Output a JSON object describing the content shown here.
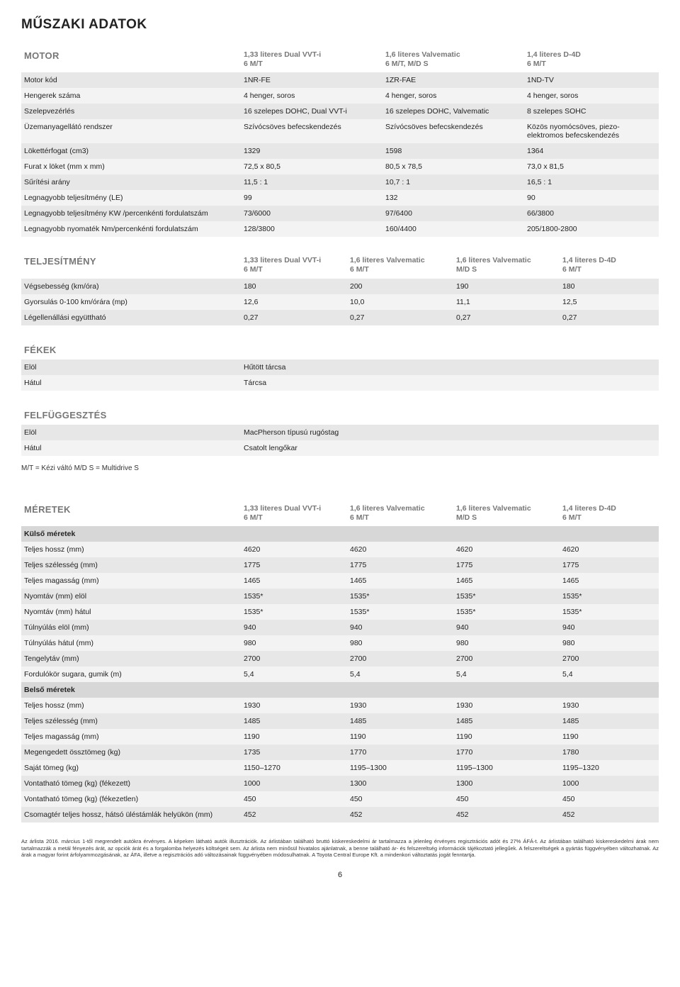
{
  "title": "MŰSZAKI ADATOK",
  "sections": {
    "motor": {
      "heading": "MOTOR",
      "cols": [
        "1,33 literes Dual VVT-i\n6 M/T",
        "1,6 literes Valvematic\n6 M/T, M/D S",
        "1,4 literes D-4D\n6 M/T"
      ],
      "rows": [
        [
          "Motor kód",
          "1NR-FE",
          "1ZR-FAE",
          "1ND-TV"
        ],
        [
          "Hengerek száma",
          "4 henger, soros",
          "4 henger, soros",
          "4 henger, soros"
        ],
        [
          "Szelepvezérlés",
          "16 szelepes DOHC, Dual VVT-i",
          "16 szelepes DOHC, Valvematic",
          "8 szelepes SOHC"
        ],
        [
          "Üzemanyagellátó rendszer",
          "Szívócsöves befecskendezés",
          "Szívócsöves befecskendezés",
          "Közös nyomócsöves, piezo-elektromos befecskendezés"
        ],
        [
          "Lökettérfogat (cm3)",
          "1329",
          "1598",
          "1364"
        ],
        [
          "Furat x löket (mm x mm)",
          "72,5 x 80,5",
          "80,5 x 78,5",
          "73,0 x 81,5"
        ],
        [
          "Sűrítési arány",
          "11,5 : 1",
          "10,7 : 1",
          "16,5 : 1"
        ],
        [
          "Legnagyobb teljesítmény (LE)",
          "99",
          "132",
          "90"
        ],
        [
          "Legnagyobb teljesítmény KW /percenkénti fordulatszám",
          "73/6000",
          "97/6400",
          "66/3800"
        ],
        [
          "Legnagyobb nyomaték Nm/percenkénti fordulatszám",
          "128/3800",
          "160/4400",
          "205/1800-2800"
        ]
      ]
    },
    "perf": {
      "heading": "TELJESÍTMÉNY",
      "cols": [
        "1,33 literes Dual VVT-i\n6 M/T",
        "1,6 literes Valvematic\n6 M/T",
        "1,6 literes Valvematic\nM/D S",
        "1,4 literes D-4D\n6 M/T"
      ],
      "rows": [
        [
          "Végsebesség (km/óra)",
          "180",
          "200",
          "190",
          "180"
        ],
        [
          "Gyorsulás 0-100 km/órára (mp)",
          "12,6",
          "10,0",
          "11,1",
          "12,5"
        ],
        [
          "Légellenállási együttható",
          "0,27",
          "0,27",
          "0,27",
          "0,27"
        ]
      ]
    },
    "brakes": {
      "heading": "FÉKEK",
      "rows": [
        [
          "Elöl",
          "Hűtött tárcsa"
        ],
        [
          "Hátul",
          "Tárcsa"
        ]
      ]
    },
    "susp": {
      "heading": "FELFÜGGESZTÉS",
      "rows": [
        [
          "Elöl",
          "MacPherson típusú rugóstag"
        ],
        [
          "Hátul",
          "Csatolt lengőkar"
        ]
      ]
    },
    "legend": "M/T = Kézi váltó        M/D S = Multidrive S",
    "dims": {
      "heading": "MÉRETEK",
      "cols": [
        "1,33 literes Dual VVT-i\n6 M/T",
        "1,6 literes Valvematic\n6 M/T",
        "1,6 literes Valvematic\nM/D S",
        "1,4 literes D-4D\n6 M/T"
      ],
      "groups": [
        {
          "label": "Külső méretek",
          "rows": [
            [
              "Teljes hossz (mm)",
              "4620",
              "4620",
              "4620",
              "4620"
            ],
            [
              "Teljes szélesség (mm)",
              "1775",
              "1775",
              "1775",
              "1775"
            ],
            [
              "Teljes magasság (mm)",
              "1465",
              "1465",
              "1465",
              "1465"
            ],
            [
              "Nyomtáv (mm) elöl",
              "1535*",
              "1535*",
              "1535*",
              "1535*"
            ],
            [
              "Nyomtáv (mm) hátul",
              "1535*",
              "1535*",
              "1535*",
              "1535*"
            ],
            [
              "Túlnyúlás elöl (mm)",
              "940",
              "940",
              "940",
              "940"
            ],
            [
              "Túlnyúlás hátul (mm)",
              "980",
              "980",
              "980",
              "980"
            ],
            [
              "Tengelytáv (mm)",
              "2700",
              "2700",
              "2700",
              "2700"
            ],
            [
              "Fordulókör sugara, gumik (m)",
              "5,4",
              "5,4",
              "5,4",
              "5,4"
            ]
          ]
        },
        {
          "label": "Belső méretek",
          "rows": [
            [
              "Teljes hossz (mm)",
              "1930",
              "1930",
              "1930",
              "1930"
            ],
            [
              "Teljes szélesség (mm)",
              "1485",
              "1485",
              "1485",
              "1485"
            ],
            [
              "Teljes magasság (mm)",
              "1190",
              "1190",
              "1190",
              "1190"
            ],
            [
              "Megengedett össztömeg (kg)",
              "1735",
              "1770",
              "1770",
              "1780"
            ],
            [
              "Saját tömeg (kg)",
              "1150–1270",
              "1195–1300",
              "1195–1300",
              "1195–1320"
            ],
            [
              "Vontatható tömeg (kg) (fékezett)",
              "1000",
              "1300",
              "1300",
              "1000"
            ],
            [
              "Vontatható tömeg (kg) (fékezetlen)",
              "450",
              "450",
              "450",
              "450"
            ],
            [
              "Csomagtér teljes hossz, hátsó üléstámlák helyükön (mm)",
              "452",
              "452",
              "452",
              "452"
            ]
          ]
        }
      ]
    }
  },
  "footnote": "Az árlista 2016. március 1-től megrendelt autókra érvényes. A képeken látható autók illusztrációk. Az árlistában található bruttó kiskereskedelmi ár tartalmazza a jelenleg érvényes regisztrációs adót és 27% ÁFÁ-t. Az árlistában található kiskereskedelmi árak nem tartalmazzák a metál fényezés árát, az opciók árát és a forgalomba helyezés költségeit sem. Az árlista nem minősül hivatalos ajánlatnak, a benne található ár- és felszereltség információk tájékoztató jellegűek. A felszereltségek a gyártás függvényében változhatnak. Az árak a magyar forint árfolyammozgásának, az ÁFA, illetve a regisztrációs adó változásainak függvényében módosulhatnak. A Toyota Central Europe Kft. a mindenkori változtatás jogát fenntartja.",
  "pagenum": "6"
}
